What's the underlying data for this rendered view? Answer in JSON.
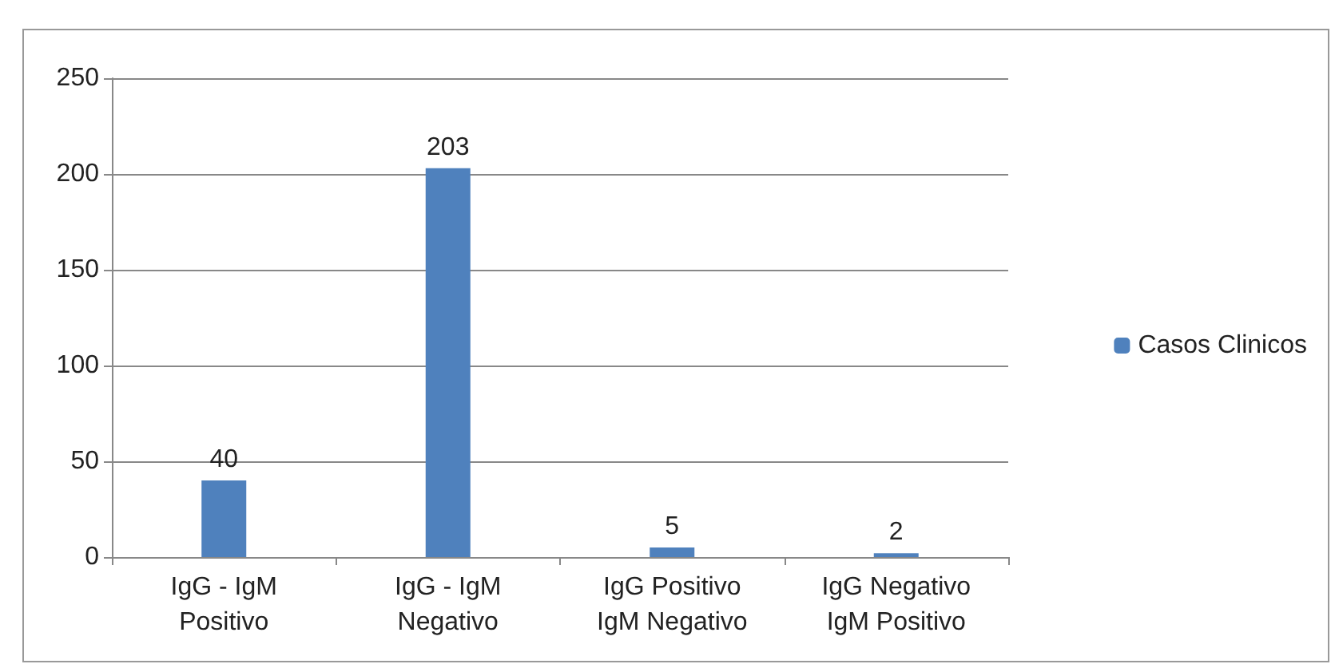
{
  "chart_data": {
    "type": "bar",
    "categories": [
      "IgG - IgM\nPositivo",
      "IgG - IgM\nNegativo",
      "IgG Positivo\nIgM Negativo",
      "IgG Negativo\nIgM Positivo"
    ],
    "series": [
      {
        "name": "Casos Clinicos",
        "color": "#4f81bd",
        "values": [
          40,
          203,
          5,
          2
        ]
      }
    ],
    "ylim": [
      0,
      250
    ],
    "yticks": [
      0,
      50,
      100,
      150,
      200,
      250
    ],
    "grid": "y",
    "legend": "right",
    "data_labels": true
  }
}
